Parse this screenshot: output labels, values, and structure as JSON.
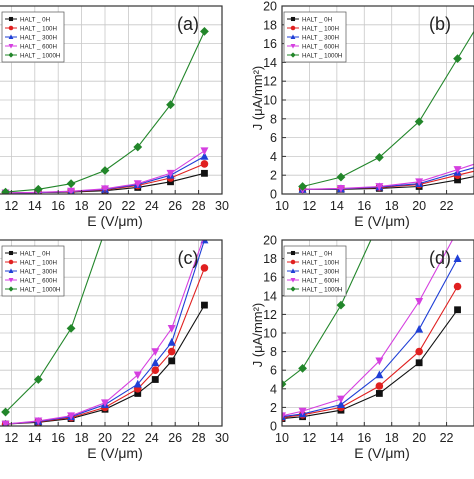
{
  "chart_data": [
    {
      "panel": "(a)",
      "type": "line",
      "xlabel": "E (V/μm)",
      "ylabel": "",
      "xlim": [
        10,
        30
      ],
      "ylim": [
        0,
        20
      ],
      "x_ticks": [
        "12",
        "14",
        "16",
        "18",
        "20",
        "22",
        "24",
        "26",
        "28",
        "30"
      ],
      "y_ticks": [],
      "legend": "top-left",
      "series": [
        {
          "name": "HALT _ 0H",
          "color": "#111111",
          "marker": "square",
          "x": [
            11.5,
            14.3,
            17.1,
            20,
            22.8,
            25.6,
            28.5
          ],
          "y": [
            0.1,
            0.15,
            0.2,
            0.35,
            0.7,
            1.3,
            2.2
          ]
        },
        {
          "name": "HALT _ 100H",
          "color": "#e02020",
          "marker": "circle",
          "x": [
            11.5,
            14.3,
            17.1,
            20,
            22.8,
            25.6,
            28.5
          ],
          "y": [
            0.1,
            0.15,
            0.25,
            0.45,
            0.9,
            1.7,
            3.2
          ]
        },
        {
          "name": "HALT _ 300H",
          "color": "#1f3fd6",
          "marker": "triangle",
          "x": [
            11.5,
            14.3,
            17.1,
            20,
            22.8,
            25.6,
            28.5
          ],
          "y": [
            0.1,
            0.15,
            0.28,
            0.5,
            1.0,
            2.0,
            4.0
          ]
        },
        {
          "name": "HALT _ 600H",
          "color": "#d53fe0",
          "marker": "triangle-down",
          "x": [
            11.5,
            14.3,
            17.1,
            20,
            22.8,
            25.6,
            28.5
          ],
          "y": [
            0.1,
            0.18,
            0.3,
            0.55,
            1.1,
            2.2,
            4.6
          ]
        },
        {
          "name": "HALT _ 1000H",
          "color": "#22862a",
          "marker": "diamond",
          "x": [
            11.5,
            14.3,
            17.1,
            20,
            22.8,
            25.6,
            28.5
          ],
          "y": [
            0.2,
            0.5,
            1.1,
            2.5,
            5.0,
            9.5,
            17.3
          ]
        }
      ]
    },
    {
      "panel": "(b)",
      "type": "line",
      "xlabel": "E (V/μm)",
      "ylabel": "J (μA/mm²)",
      "xlim": [
        10,
        24
      ],
      "ylim": [
        0,
        20
      ],
      "x_ticks": [
        "10",
        "12",
        "14",
        "16",
        "18",
        "20",
        "22"
      ],
      "y_ticks": [
        "0",
        "2",
        "4",
        "6",
        "8",
        "10",
        "12",
        "14",
        "16",
        "18",
        "20"
      ],
      "legend": "top-left",
      "series": [
        {
          "name": "HALT _ 0H",
          "color": "#111111",
          "marker": "square",
          "x": [
            11.5,
            14.3,
            17.1,
            20,
            22.8,
            24.5
          ],
          "y": [
            0.5,
            0.5,
            0.6,
            0.8,
            1.5,
            2.0
          ]
        },
        {
          "name": "HALT _ 100H",
          "color": "#e02020",
          "marker": "circle",
          "x": [
            11.5,
            14.3,
            17.1,
            20,
            22.8,
            24.5
          ],
          "y": [
            0.5,
            0.55,
            0.7,
            1.0,
            2.0,
            2.6
          ]
        },
        {
          "name": "HALT _ 300H",
          "color": "#1f3fd6",
          "marker": "triangle",
          "x": [
            11.5,
            14.3,
            17.1,
            20,
            22.8,
            24.5
          ],
          "y": [
            0.5,
            0.55,
            0.75,
            1.1,
            2.3,
            3.0
          ]
        },
        {
          "name": "HALT _ 600H",
          "color": "#d53fe0",
          "marker": "triangle-down",
          "x": [
            11.5,
            14.3,
            17.1,
            20,
            22.8,
            24.5
          ],
          "y": [
            0.5,
            0.6,
            0.8,
            1.3,
            2.6,
            3.4
          ]
        },
        {
          "name": "HALT _ 1000H",
          "color": "#22862a",
          "marker": "diamond",
          "x": [
            11.5,
            14.3,
            17.1,
            20,
            22.8,
            24.5
          ],
          "y": [
            0.8,
            1.8,
            3.9,
            7.7,
            14.4,
            18.5
          ]
        }
      ]
    },
    {
      "panel": "(c)",
      "type": "line",
      "xlabel": "E (V/μm)",
      "ylabel": "",
      "xlim": [
        10,
        30
      ],
      "ylim": [
        0,
        20
      ],
      "x_ticks": [
        "12",
        "14",
        "16",
        "18",
        "20",
        "22",
        "24",
        "26",
        "28",
        "30"
      ],
      "y_ticks": [],
      "legend": "top-left",
      "series": [
        {
          "name": "HALT _ 0H",
          "color": "#111111",
          "marker": "square",
          "x": [
            11.5,
            14.3,
            17.1,
            20,
            22.8,
            24.3,
            25.7,
            28.5
          ],
          "y": [
            0.2,
            0.4,
            0.8,
            1.8,
            3.5,
            5.0,
            7.0,
            13.0
          ]
        },
        {
          "name": "HALT _ 100H",
          "color": "#e02020",
          "marker": "circle",
          "x": [
            11.5,
            14.3,
            17.1,
            20,
            22.8,
            24.3,
            25.7,
            28.5
          ],
          "y": [
            0.2,
            0.45,
            0.9,
            2.0,
            4.0,
            6.0,
            8.0,
            17.0
          ]
        },
        {
          "name": "HALT _ 300H",
          "color": "#1f3fd6",
          "marker": "triangle",
          "x": [
            11.5,
            14.3,
            17.1,
            20,
            22.8,
            24.3,
            25.7,
            28.5
          ],
          "y": [
            0.2,
            0.5,
            1.0,
            2.3,
            4.5,
            6.8,
            9.0,
            20.0
          ]
        },
        {
          "name": "HALT _ 600H",
          "color": "#d53fe0",
          "marker": "triangle-down",
          "x": [
            11.5,
            14.3,
            17.1,
            20,
            22.8,
            24.3,
            25.7,
            28.5
          ],
          "y": [
            0.2,
            0.55,
            1.1,
            2.5,
            5.5,
            8.0,
            10.5,
            20.5
          ]
        },
        {
          "name": "HALT _ 1000H",
          "color": "#22862a",
          "marker": "diamond",
          "x": [
            11.5,
            14.3,
            17.1,
            20
          ],
          "y": [
            1.5,
            5.0,
            10.5,
            21.0
          ]
        }
      ]
    },
    {
      "panel": "(d)",
      "type": "line",
      "xlabel": "E (V/μm)",
      "ylabel": "J (μA/mm²)",
      "xlim": [
        10,
        24
      ],
      "ylim": [
        0,
        20
      ],
      "x_ticks": [
        "10",
        "12",
        "14",
        "16",
        "18",
        "20",
        "22"
      ],
      "y_ticks": [
        "0",
        "2",
        "4",
        "6",
        "8",
        "10",
        "12",
        "14",
        "16",
        "18",
        "20"
      ],
      "legend": "top-left",
      "series": [
        {
          "name": "HALT _ 0H",
          "color": "#111111",
          "marker": "square",
          "x": [
            10,
            11.5,
            14.3,
            17.1,
            20,
            22.8
          ],
          "y": [
            0.8,
            1.0,
            1.7,
            3.5,
            6.8,
            12.5
          ]
        },
        {
          "name": "HALT _ 100H",
          "color": "#e02020",
          "marker": "circle",
          "x": [
            10,
            11.5,
            14.3,
            17.1,
            20,
            22.8
          ],
          "y": [
            0.9,
            1.2,
            2.0,
            4.3,
            8.0,
            15.0
          ]
        },
        {
          "name": "HALT _ 300H",
          "color": "#1f3fd6",
          "marker": "triangle",
          "x": [
            10,
            11.5,
            14.3,
            17.1,
            20,
            22.8
          ],
          "y": [
            1.0,
            1.3,
            2.3,
            5.5,
            10.4,
            18.0
          ]
        },
        {
          "name": "HALT _ 600H",
          "color": "#d53fe0",
          "marker": "triangle-down",
          "x": [
            10,
            11.5,
            14.3,
            17.1,
            20,
            22.8
          ],
          "y": [
            1.1,
            1.6,
            2.9,
            7.0,
            13.4,
            21.0
          ]
        },
        {
          "name": "HALT _ 1000H",
          "color": "#22862a",
          "marker": "diamond",
          "x": [
            10,
            11.5,
            14.3,
            17.1
          ],
          "y": [
            4.5,
            6.2,
            13.0,
            22.0
          ]
        }
      ]
    }
  ]
}
